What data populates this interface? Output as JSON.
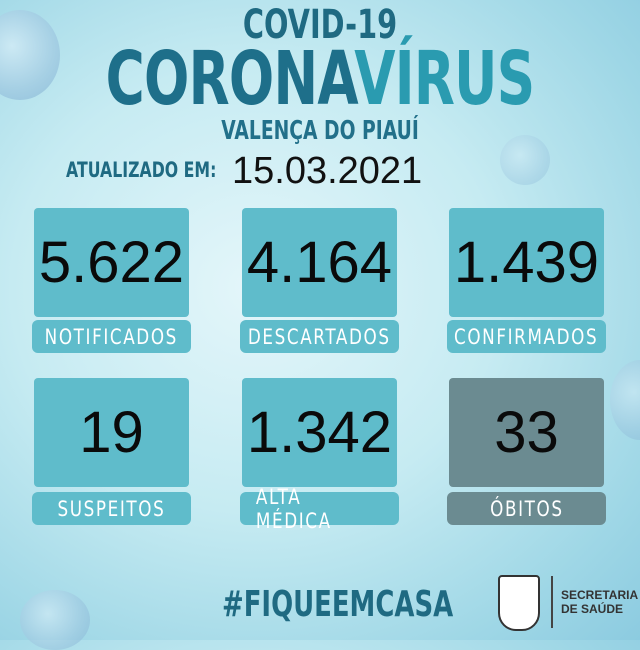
{
  "header": {
    "line1": "COVID-19",
    "line2a": "CORONA",
    "line2b": "VÍRUS",
    "city": "VALENÇA DO PIAUÍ",
    "updated_label": "ATUALIZADO EM:",
    "date": "15.03.2021"
  },
  "stats": [
    {
      "value": "5.622",
      "label": "NOTIFICADOS"
    },
    {
      "value": "4.164",
      "label": "DESCARTADOS"
    },
    {
      "value": "1.439",
      "label": "CONFIRMADOS"
    },
    {
      "value": "19",
      "label": "SUSPEITOS"
    },
    {
      "value": "1.342",
      "label": "ALTA MÉDICA"
    },
    {
      "value": "33",
      "label": "ÓBITOS"
    }
  ],
  "footer": {
    "hashtag": "#FIQUEEMCASA",
    "dept_line1": "SECRETARIA",
    "dept_line2": "DE SAÚDE",
    "crest_icon": "municipal-coat-of-arms"
  },
  "colors": {
    "box": "#5fbccb",
    "deaths_box": "#6b8b91",
    "title": "#1e6f8a"
  }
}
